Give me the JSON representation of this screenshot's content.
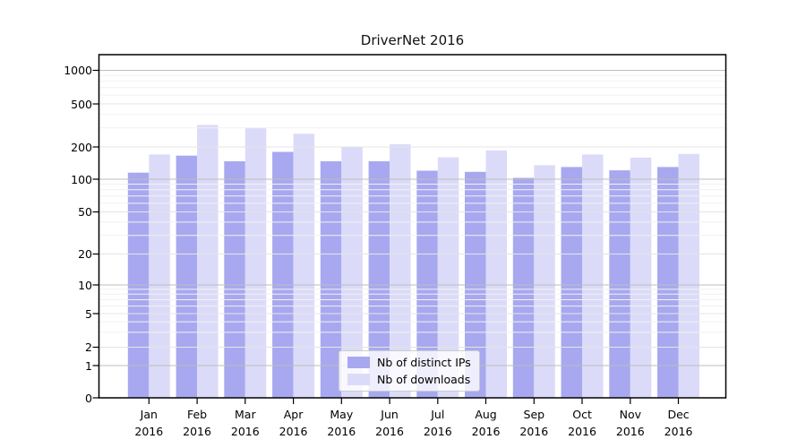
{
  "chart_data": {
    "type": "bar",
    "title": "DriverNet 2016",
    "categories": [
      "Jan",
      "Feb",
      "Mar",
      "Apr",
      "May",
      "Jun",
      "Jul",
      "Aug",
      "Sep",
      "Oct",
      "Nov",
      "Dec"
    ],
    "year_label": "2016",
    "series": [
      {
        "name": "Nb of distinct IPs",
        "color": "#a8a8f0",
        "values": [
          115,
          166,
          147,
          180,
          147,
          147,
          120,
          117,
          103,
          130,
          121,
          130
        ]
      },
      {
        "name": "Nb of downloads",
        "color": "#dbdbf9",
        "values": [
          170,
          320,
          300,
          265,
          200,
          212,
          160,
          186,
          135,
          170,
          159,
          172
        ]
      }
    ],
    "xlabel": "",
    "ylabel": "",
    "yscale": "asinh (log-like above 1, linear 0-1)",
    "ylim": [
      0,
      1400
    ],
    "y_ticks": [
      0,
      1,
      2,
      5,
      10,
      20,
      50,
      100,
      200,
      500,
      1000
    ],
    "y_minor_gridlines": [
      3,
      4,
      6,
      7,
      8,
      9,
      30,
      40,
      60,
      70,
      80,
      90,
      300,
      400,
      600,
      700,
      800,
      900
    ],
    "grid": true,
    "grid_above_bars": true,
    "legend_position": "lower center"
  },
  "legend": {
    "items": [
      {
        "label": "Nb of distinct IPs"
      },
      {
        "label": "Nb of downloads"
      }
    ]
  },
  "colors": {
    "distinct_ips": "#a8a8f0",
    "downloads": "#dbdbf9",
    "grid_major": "#bdbdbd",
    "grid_mid": "#e4e4e4",
    "grid_minor": "#f1f1f1",
    "axis": "#000000"
  }
}
